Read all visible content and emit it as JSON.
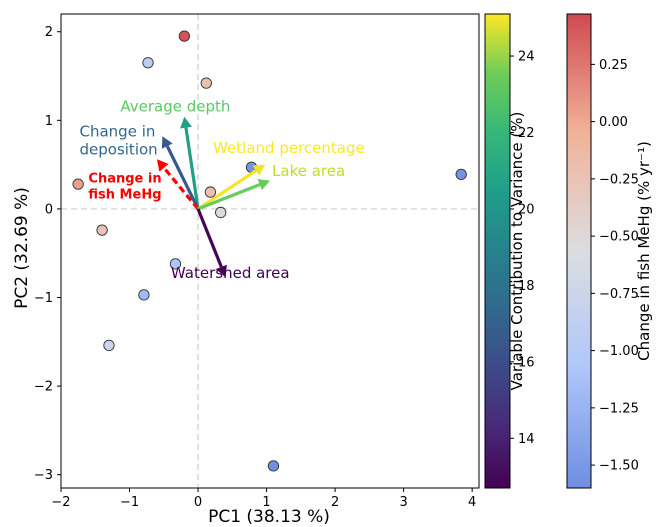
{
  "chart_data": {
    "type": "scatter",
    "xlabel": "PC1 (38.13 %)",
    "ylabel": "PC2 (32.69 %)",
    "xlim": [
      -2.0,
      4.1
    ],
    "ylim": [
      -3.15,
      2.2
    ],
    "xticks": [
      {
        "v": -2,
        "label": "−2"
      },
      {
        "v": -1,
        "label": "−1"
      },
      {
        "v": 0,
        "label": "0"
      },
      {
        "v": 1,
        "label": "1"
      },
      {
        "v": 2,
        "label": "2"
      },
      {
        "v": 3,
        "label": "3"
      },
      {
        "v": 4,
        "label": "4"
      }
    ],
    "yticks": [
      {
        "v": 2,
        "label": "2"
      },
      {
        "v": 1,
        "label": "1"
      },
      {
        "v": 0,
        "label": "0"
      },
      {
        "v": -1,
        "label": "−1"
      },
      {
        "v": -2,
        "label": "−2"
      },
      {
        "v": -3,
        "label": "−3"
      }
    ],
    "reference_lines": {
      "x": 0,
      "y": 0,
      "style": "dashed",
      "color": "#cccccc"
    },
    "points": [
      {
        "x": -0.73,
        "y": 1.65,
        "fish_mehg_change": -0.93
      },
      {
        "x": -0.2,
        "y": 1.95,
        "fish_mehg_change": 0.43
      },
      {
        "x": 0.12,
        "y": 1.42,
        "fish_mehg_change": -0.22
      },
      {
        "x": -1.75,
        "y": 0.28,
        "fish_mehg_change": 0.05
      },
      {
        "x": -1.4,
        "y": -0.24,
        "fish_mehg_change": -0.25
      },
      {
        "x": 0.18,
        "y": 0.19,
        "fish_mehg_change": -0.22
      },
      {
        "x": 0.33,
        "y": -0.04,
        "fish_mehg_change": -0.58
      },
      {
        "x": 0.78,
        "y": 0.47,
        "fish_mehg_change": -1.55
      },
      {
        "x": 3.84,
        "y": 0.39,
        "fish_mehg_change": -1.55
      },
      {
        "x": -0.33,
        "y": -0.62,
        "fish_mehg_change": -1.08
      },
      {
        "x": -0.79,
        "y": -0.97,
        "fish_mehg_change": -1.18
      },
      {
        "x": -1.3,
        "y": -1.54,
        "fish_mehg_change": -0.75
      },
      {
        "x": 1.1,
        "y": -2.9,
        "fish_mehg_change": -1.58
      }
    ],
    "loadings": [
      {
        "label": "Average depth",
        "dx": -0.2,
        "dy": 1.04,
        "contribution": 20.6,
        "label_color": "#5ac864",
        "label_x": -0.33,
        "label_y": 1.1,
        "anchor": "middle",
        "line1": "Average depth"
      },
      {
        "label": "Change in deposition",
        "dx": -0.52,
        "dy": 0.82,
        "contribution": 16.6,
        "label_color": "#31688e",
        "label_x": -1.73,
        "label_y": 0.82,
        "anchor": "start",
        "line1": "Change in",
        "line2": "deposition"
      },
      {
        "label": "Change in fish MeHg",
        "dx": -0.6,
        "dy": 0.56,
        "contribution": null,
        "dashed": true,
        "label_color": "#ff0000",
        "label_x": -1.6,
        "label_y": 0.3,
        "anchor": "start",
        "bold": true,
        "line1": "Change in",
        "line2": "fish MeHg"
      },
      {
        "label": "Wetland percentage",
        "dx": 0.98,
        "dy": 0.5,
        "contribution": 25.0,
        "label_color": "#fde725",
        "label_x": 0.22,
        "label_y": 0.63,
        "anchor": "start",
        "line1": "Wetland percentage"
      },
      {
        "label": "Lake area",
        "dx": 1.05,
        "dy": 0.32,
        "contribution": 23.4,
        "label_color": "#c2df23",
        "label_x": 1.08,
        "label_y": 0.37,
        "anchor": "start",
        "line1": "Lake area"
      },
      {
        "label": "Watershed area",
        "dx": 0.4,
        "dy": -0.77,
        "contribution": 12.9,
        "label_color": "#440154",
        "label_x": 0.47,
        "label_y": -0.78,
        "anchor": "middle",
        "line1": "Watershed area"
      }
    ],
    "colorbars": [
      {
        "label": "Variable Contribution to Variance (%)",
        "colormap": "viridis",
        "min": 12.7,
        "max": 25.1,
        "ticks": [
          {
            "v": 24,
            "label": "24"
          },
          {
            "v": 22,
            "label": "22"
          },
          {
            "v": 20,
            "label": "20"
          },
          {
            "v": 18,
            "label": "18"
          },
          {
            "v": 16,
            "label": "16"
          },
          {
            "v": 14,
            "label": "14"
          }
        ]
      },
      {
        "label": "Change in fish MeHg (% yr⁻¹)",
        "colormap": "coolwarm",
        "min": -1.6,
        "max": 0.47,
        "ticks": [
          {
            "v": 0.25,
            "label": "0.25"
          },
          {
            "v": 0,
            "label": "0.00"
          },
          {
            "v": -0.25,
            "label": "−0.25"
          },
          {
            "v": -0.5,
            "label": "−0.50"
          },
          {
            "v": -0.75,
            "label": "−0.75"
          },
          {
            "v": -1.0,
            "label": "−1.00"
          },
          {
            "v": -1.25,
            "label": "−1.25"
          },
          {
            "v": -1.5,
            "label": "−1.50"
          }
        ]
      }
    ]
  }
}
